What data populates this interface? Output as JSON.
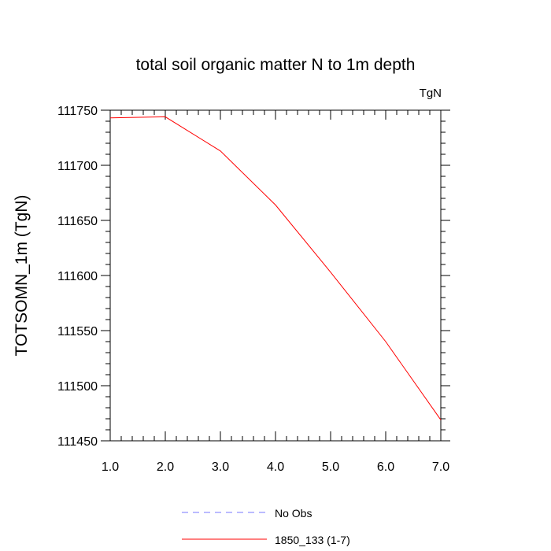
{
  "chart_data": {
    "type": "line",
    "title": "total soil organic matter N to 1m depth",
    "units_label": "TgN",
    "xlabel": "",
    "ylabel": "TOTSOMN_1m  (TgN)",
    "xlim": [
      1.0,
      7.0
    ],
    "ylim": [
      111450,
      111750
    ],
    "x_ticks": [
      "1.0",
      "2.0",
      "3.0",
      "4.0",
      "5.0",
      "6.0",
      "7.0"
    ],
    "y_ticks": [
      "111450",
      "111500",
      "111550",
      "111600",
      "111650",
      "111700",
      "111750"
    ],
    "x": [
      1,
      2,
      3,
      4,
      5,
      6,
      7
    ],
    "series": [
      {
        "name": "1850_133 (1-7)",
        "color": "#ff0000",
        "style": "solid",
        "values": [
          111743,
          111744,
          111713,
          111664,
          111603,
          111540,
          111469
        ]
      }
    ],
    "legend": [
      {
        "label": "No Obs",
        "color": "#7777ff",
        "style": "dashed"
      },
      {
        "label": "1850_133 (1-7)",
        "color": "#ff0000",
        "style": "solid"
      }
    ],
    "legend_position": "bottom-center",
    "grid": false
  }
}
